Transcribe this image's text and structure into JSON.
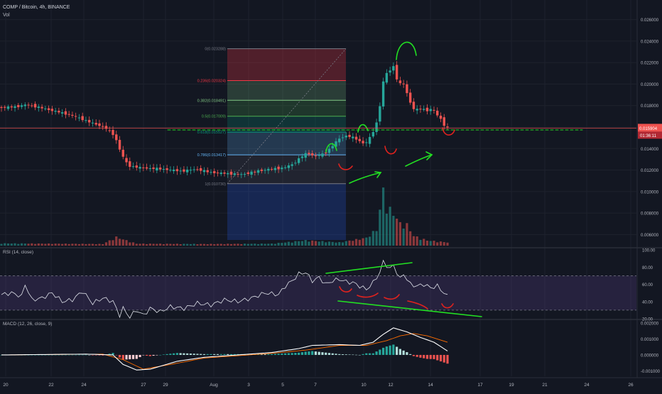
{
  "header": {
    "symbol": "COMP / Bitcoin, 4h, BINANCE",
    "volume_label": "Vol"
  },
  "price_axis": {
    "ticks": [
      "0.026000",
      "0.024000",
      "0.022000",
      "0.020000",
      "0.018000",
      "0.016000",
      "0.014000",
      "0.012000",
      "0.010000",
      "0.008000",
      "0.006000"
    ],
    "current_price": "0.015904",
    "countdown": "01:36:11"
  },
  "fibonacci": {
    "levels": [
      {
        "label": "0(0.023288)",
        "price": 0.023288,
        "color": "#787b86"
      },
      {
        "label": "0.236(0.020324)",
        "price": 0.020324,
        "color": "#f23645"
      },
      {
        "label": "0.382(0.018491)",
        "price": 0.018491,
        "color": "#81c784"
      },
      {
        "label": "0.5(0.017009)",
        "price": 0.017009,
        "color": "#4caf50"
      },
      {
        "label": "0.618(0.015527)",
        "price": 0.015527,
        "color": "#089981"
      },
      {
        "label": "0.786(0.013417)",
        "price": 0.013417,
        "color": "#64b5f6"
      },
      {
        "label": "1(0.010730)",
        "price": 0.01073,
        "color": "#787b86"
      }
    ]
  },
  "rsi": {
    "title": "RSI (14, close)",
    "ticks": [
      "100.00",
      "80.00",
      "60.00",
      "40.00",
      "20.00"
    ]
  },
  "macd": {
    "title": "MACD (12, 26, close, 9)",
    "ticks": [
      "0.002000",
      "0.001000",
      "0.000000",
      "-0.001000"
    ]
  },
  "time_axis": {
    "labels": [
      "20",
      "22",
      "24",
      "27",
      "29",
      "Aug",
      "3",
      "5",
      "7",
      "10",
      "12",
      "14",
      "17",
      "19",
      "21",
      "24",
      "26"
    ]
  },
  "colors": {
    "background": "#131722",
    "up": "#26a69a",
    "down": "#ef5350",
    "grid": "#1e222d",
    "axis_text": "#b2b5be",
    "annotation_green": "#22e022",
    "annotation_red": "#e0221e",
    "rsi_band": "#7e57c2",
    "macd_line": "#ffffff",
    "signal_line": "#ff6d00"
  },
  "chart_data": [
    {
      "type": "candlestick",
      "title": "COMP / Bitcoin, 4h, BINANCE",
      "x_labels": [
        "20",
        "22",
        "24",
        "27",
        "29",
        "Aug",
        "3",
        "5",
        "7",
        "10",
        "12",
        "14",
        "17",
        "19",
        "21",
        "24",
        "26"
      ],
      "ylim": [
        0.0055,
        0.0265
      ],
      "anchors_price": [
        [
          0,
          0.0178
        ],
        [
          5,
          0.0179
        ],
        [
          8,
          0.0181
        ],
        [
          12,
          0.0178
        ],
        [
          16,
          0.0175
        ],
        [
          20,
          0.0172
        ],
        [
          24,
          0.0168
        ],
        [
          27,
          0.0164
        ],
        [
          31,
          0.016
        ],
        [
          34,
          0.0152
        ],
        [
          36,
          0.0135
        ],
        [
          38,
          0.0124
        ],
        [
          42,
          0.0122
        ],
        [
          48,
          0.0121
        ],
        [
          54,
          0.0119
        ],
        [
          58,
          0.0121
        ],
        [
          62,
          0.0118
        ],
        [
          66,
          0.0117
        ],
        [
          72,
          0.0116
        ],
        [
          76,
          0.0119
        ],
        [
          80,
          0.0121
        ],
        [
          84,
          0.0122
        ],
        [
          87,
          0.0126
        ],
        [
          89,
          0.0132
        ],
        [
          91,
          0.0136
        ],
        [
          93,
          0.0133
        ],
        [
          96,
          0.0135
        ],
        [
          98,
          0.0141
        ],
        [
          100,
          0.0148
        ],
        [
          102,
          0.0152
        ],
        [
          104,
          0.0151
        ],
        [
          106,
          0.0148
        ],
        [
          108,
          0.0144
        ],
        [
          110,
          0.0152
        ],
        [
          112,
          0.0168
        ],
        [
          113,
          0.0192
        ],
        [
          114,
          0.0212
        ],
        [
          115,
          0.0208
        ],
        [
          116,
          0.0218
        ],
        [
          117,
          0.0215
        ],
        [
          118,
          0.0195
        ],
        [
          119,
          0.0205
        ],
        [
          120,
          0.0195
        ],
        [
          121,
          0.0188
        ],
        [
          122,
          0.0178
        ],
        [
          123,
          0.0176
        ],
        [
          125,
          0.0177
        ],
        [
          126,
          0.0176
        ],
        [
          127,
          0.0175
        ],
        [
          128,
          0.0178
        ],
        [
          129,
          0.0172
        ],
        [
          130,
          0.017
        ],
        [
          131,
          0.0165
        ],
        [
          132,
          0.0159
        ]
      ],
      "volume_anchors": [
        [
          0,
          0.35
        ],
        [
          30,
          0.25
        ],
        [
          34,
          1.3
        ],
        [
          40,
          0.3
        ],
        [
          60,
          0.25
        ],
        [
          80,
          0.3
        ],
        [
          90,
          0.8
        ],
        [
          100,
          0.5
        ],
        [
          108,
          1.2
        ],
        [
          111,
          2.5
        ],
        [
          113,
          8.5
        ],
        [
          114,
          6
        ],
        [
          116,
          5
        ],
        [
          118,
          3.4
        ],
        [
          120,
          3.2
        ],
        [
          122,
          1.5
        ],
        [
          126,
          0.8
        ],
        [
          132,
          0.5
        ]
      ],
      "volume_ylim": [
        0,
        9
      ]
    },
    {
      "type": "line",
      "title": "RSI (14, close)",
      "ylim": [
        20,
        100
      ],
      "overbought": 70,
      "oversold": 30,
      "anchors": [
        [
          0,
          48
        ],
        [
          3,
          50
        ],
        [
          6,
          46
        ],
        [
          7,
          60
        ],
        [
          9,
          42
        ],
        [
          12,
          44
        ],
        [
          15,
          50
        ],
        [
          18,
          40
        ],
        [
          21,
          42
        ],
        [
          24,
          52
        ],
        [
          27,
          38
        ],
        [
          30,
          44
        ],
        [
          33,
          40
        ],
        [
          35,
          24
        ],
        [
          36,
          32
        ],
        [
          38,
          22
        ],
        [
          40,
          30
        ],
        [
          42,
          24
        ],
        [
          44,
          32
        ],
        [
          47,
          28
        ],
        [
          50,
          34
        ],
        [
          54,
          32
        ],
        [
          58,
          38
        ],
        [
          62,
          36
        ],
        [
          66,
          42
        ],
        [
          70,
          40
        ],
        [
          74,
          44
        ],
        [
          78,
          50
        ],
        [
          82,
          48
        ],
        [
          84,
          58
        ],
        [
          86,
          64
        ],
        [
          88,
          72
        ],
        [
          90,
          74
        ],
        [
          92,
          64
        ],
        [
          94,
          68
        ],
        [
          96,
          60
        ],
        [
          98,
          64
        ],
        [
          100,
          66
        ],
        [
          102,
          63
        ],
        [
          104,
          62
        ],
        [
          106,
          58
        ],
        [
          108,
          54
        ],
        [
          110,
          62
        ],
        [
          112,
          74
        ],
        [
          113,
          86
        ],
        [
          115,
          78
        ],
        [
          116,
          82
        ],
        [
          118,
          66
        ],
        [
          119,
          72
        ],
        [
          121,
          60
        ],
        [
          123,
          58
        ],
        [
          125,
          60
        ],
        [
          127,
          56
        ],
        [
          129,
          58
        ],
        [
          131,
          50
        ],
        [
          132,
          46
        ]
      ]
    },
    {
      "type": "macd",
      "title": "MACD (12, 26, close, 9)",
      "ylim": [
        -0.0013,
        0.0021
      ],
      "macd_anchors": [
        [
          0,
          0.0
        ],
        [
          25,
          5e-05
        ],
        [
          33,
          0.0
        ],
        [
          36,
          -0.0006
        ],
        [
          40,
          -0.00095
        ],
        [
          44,
          -0.0009
        ],
        [
          52,
          -0.0004
        ],
        [
          60,
          -0.00015
        ],
        [
          70,
          0.0
        ],
        [
          80,
          0.00015
        ],
        [
          88,
          0.0004
        ],
        [
          92,
          0.0006
        ],
        [
          100,
          0.00065
        ],
        [
          106,
          0.0006
        ],
        [
          110,
          0.0008
        ],
        [
          113,
          0.0013
        ],
        [
          116,
          0.0017
        ],
        [
          120,
          0.00145
        ],
        [
          124,
          0.0011
        ],
        [
          128,
          0.0008
        ],
        [
          132,
          0.00025
        ]
      ],
      "signal_anchors": [
        [
          0,
          0.0
        ],
        [
          30,
          5e-05
        ],
        [
          36,
          -0.0003
        ],
        [
          42,
          -0.0009
        ],
        [
          50,
          -0.0006
        ],
        [
          60,
          -0.0002
        ],
        [
          70,
          -5e-05
        ],
        [
          80,
          0.0001
        ],
        [
          90,
          0.0003
        ],
        [
          100,
          0.0006
        ],
        [
          108,
          0.0006
        ],
        [
          114,
          0.0009
        ],
        [
          118,
          0.0012
        ],
        [
          122,
          0.00135
        ],
        [
          126,
          0.0012
        ],
        [
          132,
          0.0008
        ]
      ]
    }
  ]
}
